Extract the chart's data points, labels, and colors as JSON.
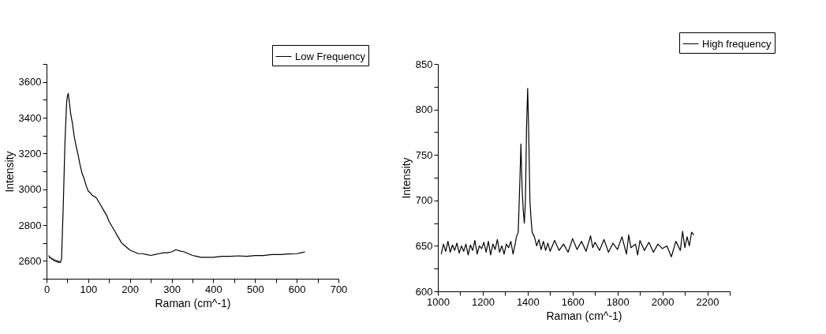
{
  "chart_data": [
    {
      "type": "line",
      "xlabel": "Raman (cm^-1)",
      "ylabel": "Intensity",
      "xlim": [
        0,
        700
      ],
      "ylim": [
        2500,
        3700
      ],
      "xticks": [
        0,
        {
          "value": 50,
          "label": null
        },
        100,
        {
          "value": 150,
          "label": null
        },
        200,
        {
          "value": 250,
          "label": null
        },
        300,
        {
          "value": 350,
          "label": null
        },
        400,
        {
          "value": 450,
          "label": null
        },
        500,
        {
          "value": 550,
          "label": null
        },
        600,
        {
          "value": 650,
          "label": null
        },
        700
      ],
      "yticks": [
        {
          "value": 2500,
          "label": null
        },
        2600,
        {
          "value": 2700,
          "label": null
        },
        2800,
        {
          "value": 2900,
          "label": null
        },
        3000,
        {
          "value": 3100,
          "label": null
        },
        3200,
        {
          "value": 3300,
          "label": null
        },
        3400,
        {
          "value": 3500,
          "label": null
        },
        3600,
        {
          "value": 3700,
          "label": null
        }
      ],
      "legend": "top right",
      "grid": false,
      "marker": "none",
      "line_style": "solid",
      "series": [
        {
          "name": "Low Frequency",
          "color": "#000000",
          "x": [
            5,
            8,
            10,
            13,
            15,
            18,
            20,
            23,
            25,
            28,
            30,
            33,
            36,
            40,
            44,
            48,
            50,
            52,
            55,
            58,
            62,
            66,
            70,
            75,
            80,
            85,
            90,
            95,
            100,
            105,
            110,
            115,
            120,
            125,
            130,
            135,
            140,
            145,
            150,
            155,
            160,
            165,
            170,
            175,
            180,
            185,
            190,
            195,
            200,
            210,
            220,
            230,
            240,
            250,
            260,
            270,
            280,
            290,
            300,
            310,
            320,
            330,
            340,
            350,
            360,
            370,
            380,
            390,
            400,
            420,
            440,
            460,
            480,
            500,
            520,
            540,
            560,
            580,
            600,
            610,
            620
          ],
          "values": [
            2630,
            2615,
            2620,
            2608,
            2612,
            2600,
            2605,
            2595,
            2602,
            2590,
            2598,
            2590,
            2610,
            2900,
            3250,
            3480,
            3520,
            3535,
            3480,
            3420,
            3370,
            3300,
            3250,
            3200,
            3140,
            3090,
            3060,
            3020,
            2990,
            2980,
            2965,
            2960,
            2950,
            2930,
            2910,
            2890,
            2870,
            2850,
            2820,
            2800,
            2780,
            2760,
            2740,
            2720,
            2700,
            2690,
            2680,
            2670,
            2660,
            2650,
            2640,
            2640,
            2635,
            2630,
            2635,
            2640,
            2645,
            2645,
            2650,
            2662,
            2655,
            2650,
            2640,
            2630,
            2625,
            2620,
            2620,
            2620,
            2620,
            2625,
            2625,
            2628,
            2625,
            2630,
            2630,
            2635,
            2635,
            2638,
            2640,
            2645,
            2650
          ]
        }
      ]
    },
    {
      "type": "line",
      "xlabel": "Raman (cm^-1)",
      "ylabel": "Intensity",
      "xlim": [
        1000,
        2300
      ],
      "ylim": [
        600,
        850
      ],
      "xticks": [
        1000,
        {
          "value": 1100,
          "label": null
        },
        1200,
        {
          "value": 1300,
          "label": null
        },
        1400,
        {
          "value": 1500,
          "label": null
        },
        1600,
        {
          "value": 1700,
          "label": null
        },
        1800,
        {
          "value": 1900,
          "label": null
        },
        2000,
        {
          "value": 2100,
          "label": null
        },
        2200,
        {
          "value": 2300,
          "label": null
        }
      ],
      "yticks": [
        600,
        {
          "value": 625,
          "label": null
        },
        650,
        {
          "value": 675,
          "label": null
        },
        700,
        {
          "value": 725,
          "label": null
        },
        750,
        {
          "value": 775,
          "label": null
        },
        800,
        {
          "value": 825,
          "label": null
        },
        850
      ],
      "legend": "top right",
      "grid": false,
      "marker": "none",
      "line_style": "solid",
      "series": [
        {
          "name": "High frequency",
          "color": "#000000",
          "x": [
            1015,
            1025,
            1035,
            1045,
            1055,
            1065,
            1075,
            1085,
            1095,
            1105,
            1115,
            1125,
            1135,
            1145,
            1155,
            1165,
            1175,
            1185,
            1195,
            1205,
            1215,
            1225,
            1235,
            1245,
            1255,
            1265,
            1275,
            1285,
            1295,
            1305,
            1315,
            1325,
            1335,
            1345,
            1350,
            1358,
            1365,
            1370,
            1375,
            1380,
            1385,
            1390,
            1395,
            1400,
            1405,
            1410,
            1415,
            1420,
            1430,
            1440,
            1450,
            1460,
            1470,
            1480,
            1490,
            1500,
            1520,
            1540,
            1560,
            1580,
            1600,
            1620,
            1640,
            1660,
            1680,
            1690,
            1700,
            1720,
            1740,
            1760,
            1780,
            1800,
            1820,
            1840,
            1850,
            1860,
            1880,
            1890,
            1900,
            1920,
            1940,
            1960,
            1980,
            2000,
            2020,
            2040,
            2060,
            2080,
            2090,
            2100,
            2110,
            2120,
            2130,
            2140
          ],
          "values": [
            641,
            652,
            644,
            655,
            643,
            651,
            645,
            653,
            642,
            650,
            644,
            652,
            640,
            651,
            645,
            656,
            641,
            650,
            647,
            654,
            643,
            655,
            640,
            652,
            646,
            657,
            643,
            650,
            641,
            652,
            648,
            655,
            641,
            653,
            660,
            665,
            720,
            762,
            715,
            690,
            675,
            700,
            780,
            823,
            770,
            700,
            680,
            665,
            660,
            650,
            657,
            646,
            655,
            645,
            653,
            644,
            656,
            645,
            652,
            643,
            658,
            646,
            655,
            644,
            661,
            648,
            654,
            645,
            657,
            643,
            653,
            646,
            660,
            641,
            662,
            648,
            652,
            640,
            656,
            645,
            654,
            643,
            652,
            647,
            650,
            638,
            655,
            645,
            666,
            648,
            660,
            650,
            665,
            662
          ]
        }
      ]
    }
  ]
}
